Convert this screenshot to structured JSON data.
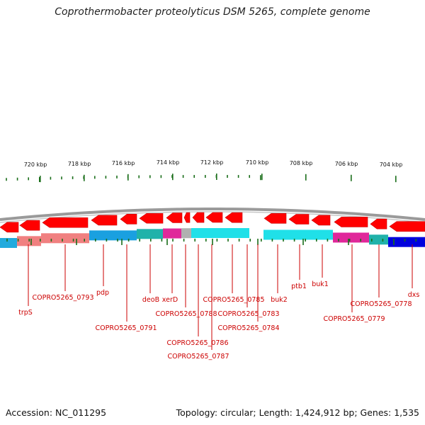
{
  "title": "Coprothermobacter proteolyticus DSM 5265, complete genome",
  "footer": {
    "accession": "Accession: NC_011295",
    "topology": "Topology: circular; Length: 1,424,912 bp; Genes: 1,535"
  },
  "colors": {
    "label_red": "#cc0000",
    "tick_green": "#1a6e1a",
    "arrow_red": "#ff0000",
    "backbone_gray": "#9a9a9a"
  },
  "scale_labels": [
    "720 kbp",
    "718 kbp",
    "716 kbp",
    "714 kbp",
    "712 kbp",
    "710 kbp",
    "708 kbp",
    "706 kbp",
    "704 kbp"
  ],
  "genes": [
    {
      "label": "trpS"
    },
    {
      "label": "COPRO5265_0793"
    },
    {
      "label": "pdp"
    },
    {
      "label": "COPRO5265_0791"
    },
    {
      "label": "deoB"
    },
    {
      "label": "xerD"
    },
    {
      "label": "COPRO5265_0788"
    },
    {
      "label": "COPRO5265_0786"
    },
    {
      "label": "COPRO5265_0787"
    },
    {
      "label": "COPRO5265_0785"
    },
    {
      "label": "COPRO5265_0783"
    },
    {
      "label": "COPRO5265_0784"
    },
    {
      "label": "buk2"
    },
    {
      "label": "ptb1"
    },
    {
      "label": "buk1"
    },
    {
      "label": "COPRO5265_0779"
    },
    {
      "label": "COPRO5265_0778"
    },
    {
      "label": "dxs"
    }
  ]
}
